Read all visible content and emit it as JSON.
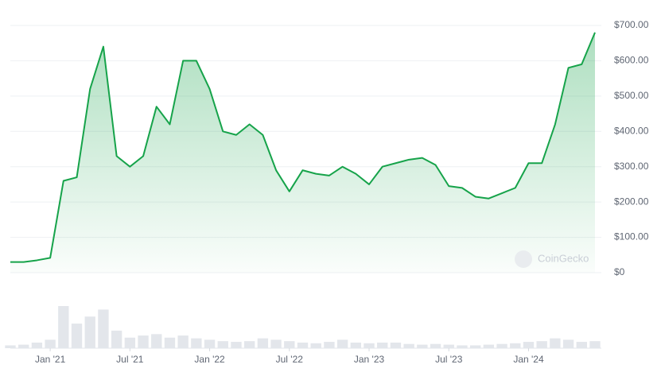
{
  "chart_data": {
    "type": "line",
    "watermark": "CoinGecko",
    "x": [
      "2020-10",
      "2020-11",
      "2020-12",
      "2021-01",
      "2021-02",
      "2021-03",
      "2021-04",
      "2021-05",
      "2021-06",
      "2021-07",
      "2021-08",
      "2021-09",
      "2021-10",
      "2021-11",
      "2021-12",
      "2022-01",
      "2022-02",
      "2022-03",
      "2022-04",
      "2022-05",
      "2022-06",
      "2022-07",
      "2022-08",
      "2022-09",
      "2022-10",
      "2022-11",
      "2022-12",
      "2023-01",
      "2023-02",
      "2023-03",
      "2023-04",
      "2023-05",
      "2023-06",
      "2023-07",
      "2023-08",
      "2023-09",
      "2023-10",
      "2023-11",
      "2023-12",
      "2024-01",
      "2024-02",
      "2024-03",
      "2024-04",
      "2024-05",
      "2024-06"
    ],
    "series": [
      {
        "name": "Price",
        "color": "#16a34a",
        "values": [
          30,
          30,
          35,
          42,
          260,
          270,
          520,
          640,
          330,
          300,
          330,
          470,
          420,
          600,
          600,
          520,
          400,
          390,
          420,
          390,
          290,
          230,
          290,
          280,
          275,
          300,
          280,
          250,
          300,
          310,
          320,
          325,
          305,
          245,
          240,
          215,
          210,
          225,
          240,
          310,
          310,
          420,
          580,
          590,
          680
        ]
      },
      {
        "name": "Volume",
        "color": "#e3e6eb",
        "values": [
          4,
          5,
          8,
          12,
          60,
          35,
          45,
          55,
          25,
          15,
          18,
          20,
          15,
          18,
          14,
          12,
          10,
          9,
          10,
          14,
          12,
          10,
          8,
          7,
          9,
          12,
          8,
          7,
          8,
          8,
          6,
          5,
          6,
          5,
          4,
          4,
          5,
          6,
          7,
          9,
          10,
          14,
          12,
          9,
          10
        ]
      }
    ],
    "xlim": [
      "2020-10",
      "2024-06"
    ],
    "xticks": [
      {
        "value": "2021-01",
        "label": "Jan '21"
      },
      {
        "value": "2021-07",
        "label": "Jul '21"
      },
      {
        "value": "2022-01",
        "label": "Jan '22"
      },
      {
        "value": "2022-07",
        "label": "Jul '22"
      },
      {
        "value": "2023-01",
        "label": "Jan '23"
      },
      {
        "value": "2023-07",
        "label": "Jul '23"
      },
      {
        "value": "2024-01",
        "label": "Jan '24"
      }
    ],
    "ylim": [
      0,
      700
    ],
    "yticks": [
      {
        "value": 0,
        "label": "$0"
      },
      {
        "value": 100,
        "label": "$100.00"
      },
      {
        "value": 200,
        "label": "$200.00"
      },
      {
        "value": 300,
        "label": "$300.00"
      },
      {
        "value": 400,
        "label": "$400.00"
      },
      {
        "value": 500,
        "label": "$500.00"
      },
      {
        "value": 600,
        "label": "$600.00"
      },
      {
        "value": 700,
        "label": "$700.00"
      }
    ],
    "grid": true
  }
}
